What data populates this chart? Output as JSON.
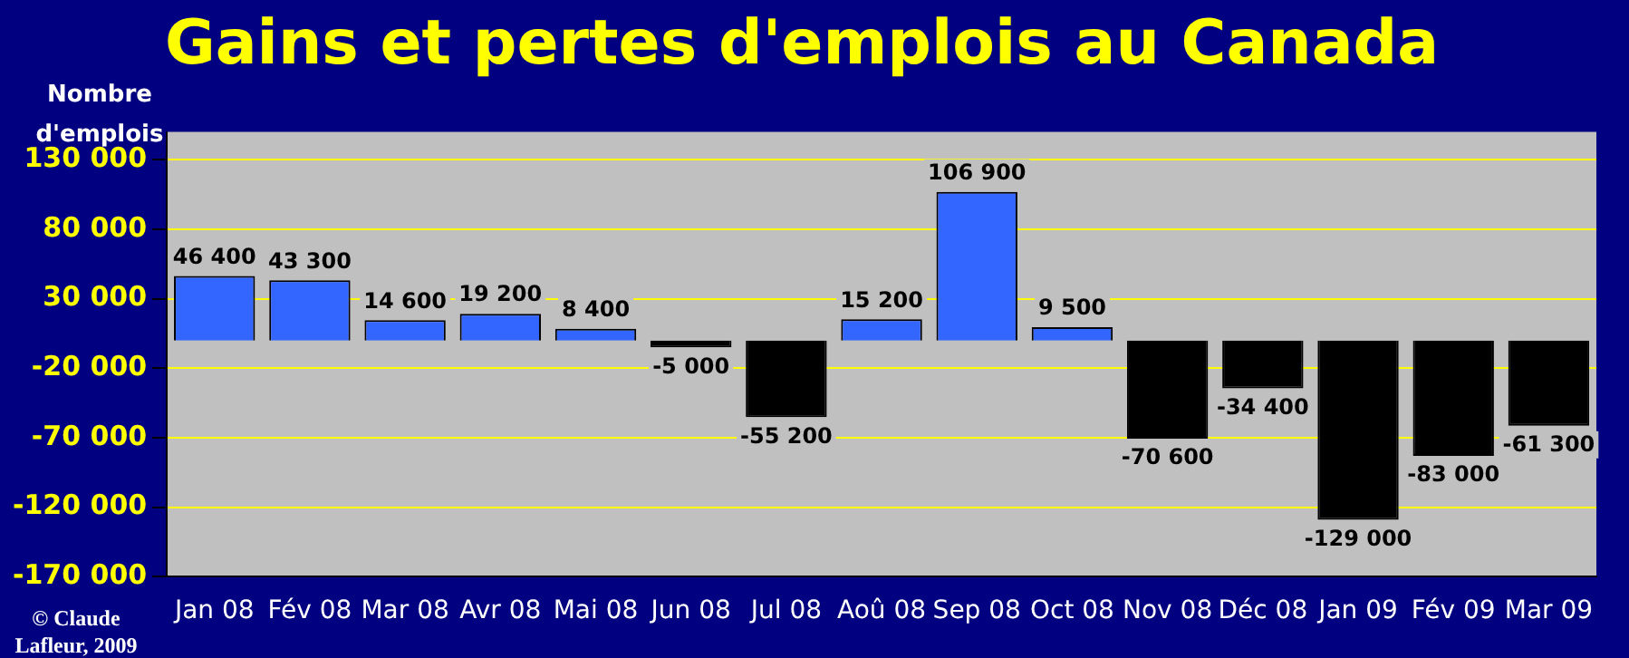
{
  "chart_data": {
    "type": "bar",
    "title": "Gains et pertes d'emplois au Canada",
    "ylabel": "Nombre d'emplois",
    "categories": [
      "Jan 08",
      "Fév 08",
      "Mar 08",
      "Avr 08",
      "Mai 08",
      "Jun 08",
      "Jul 08",
      "Aoû 08",
      "Sep 08",
      "Oct 08",
      "Nov 08",
      "Déc 08",
      "Jan 09",
      "Fév 09",
      "Mar 09"
    ],
    "values": [
      46400,
      43300,
      14600,
      19200,
      8400,
      -5000,
      -55200,
      15200,
      106900,
      9500,
      -70600,
      -34400,
      -129000,
      -83000,
      -61300
    ],
    "value_labels": [
      "46 400",
      "43 300",
      "14 600",
      "19 200",
      "8 400",
      "-5 000",
      "-55 200",
      "15 200",
      "106 900",
      "9 500",
      "-70 600",
      "-34 400",
      "-129 000",
      "-83 000",
      "-61 300"
    ],
    "colors": [
      "#3366ff",
      "#3366ff",
      "#3366ff",
      "#3366ff",
      "#3366ff",
      "#000000",
      "#000000",
      "#3366ff",
      "#3366ff",
      "#3366ff",
      "#000000",
      "#000000",
      "#000000",
      "#000000",
      "#000000"
    ],
    "ylim": [
      -170000,
      150000
    ],
    "yticks": [
      {
        "value": -170000,
        "label": "-170 000"
      },
      {
        "value": -120000,
        "label": "-120 000"
      },
      {
        "value": -70000,
        "label": "-70 000"
      },
      {
        "value": -20000,
        "label": "-20 000"
      },
      {
        "value": 30000,
        "label": "30 000"
      },
      {
        "value": 80000,
        "label": "80 000"
      },
      {
        "value": 130000,
        "label": "130 000"
      }
    ],
    "grid": "y",
    "legend": false,
    "annotations": [
      "© Claude Lafleur, 2009"
    ]
  }
}
